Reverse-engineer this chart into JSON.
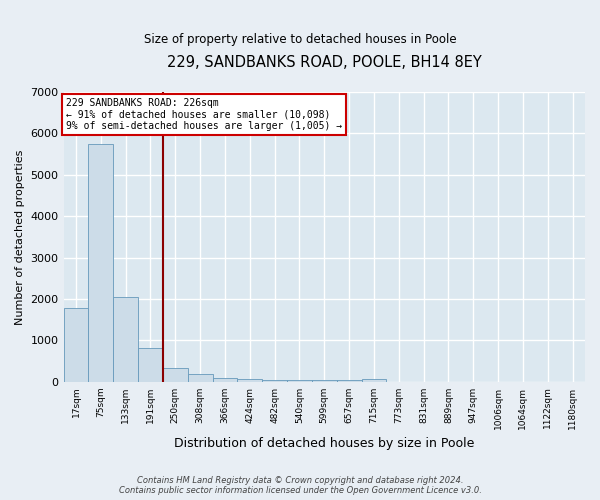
{
  "title": "229, SANDBANKS ROAD, POOLE, BH14 8EY",
  "subtitle": "Size of property relative to detached houses in Poole",
  "xlabel": "Distribution of detached houses by size in Poole",
  "ylabel": "Number of detached properties",
  "categories": [
    "17sqm",
    "75sqm",
    "133sqm",
    "191sqm",
    "250sqm",
    "308sqm",
    "366sqm",
    "424sqm",
    "482sqm",
    "540sqm",
    "599sqm",
    "657sqm",
    "715sqm",
    "773sqm",
    "831sqm",
    "889sqm",
    "947sqm",
    "1006sqm",
    "1064sqm",
    "1122sqm",
    "1180sqm"
  ],
  "values": [
    1780,
    5750,
    2050,
    810,
    330,
    185,
    100,
    70,
    50,
    40,
    40,
    30,
    70,
    0,
    0,
    0,
    0,
    0,
    0,
    0,
    0
  ],
  "bar_color": "#ccdce8",
  "bar_edge_color": "#6699bb",
  "ylim": [
    0,
    7000
  ],
  "yticks": [
    0,
    1000,
    2000,
    3000,
    4000,
    5000,
    6000,
    7000
  ],
  "subject_label": "229 SANDBANKS ROAD: 226sqm",
  "annotation_line1": "← 91% of detached houses are smaller (10,098)",
  "annotation_line2": "9% of semi-detached houses are larger (1,005) →",
  "footer_line1": "Contains HM Land Registry data © Crown copyright and database right 2024.",
  "footer_line2": "Contains public sector information licensed under the Open Government Licence v3.0.",
  "background_color": "#e8eef4",
  "plot_background_color": "#dce8f0",
  "grid_color": "#ffffff",
  "red_line_color": "#8b0000",
  "annotation_box_color": "#cc0000"
}
